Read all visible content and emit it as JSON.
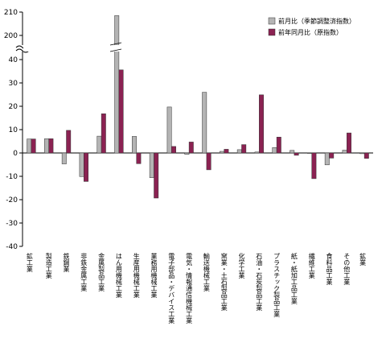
{
  "chart_data": {
    "type": "bar",
    "categories": [
      "鉱工業",
      "製造工業",
      "鉄鋼業",
      "非鉄金属工業",
      "金属製品工業",
      "はん用機械工業",
      "生産用機械工業",
      "業務用機械工業",
      "電子部品・デバイス工業",
      "電気・情報通信機械工業",
      "輸送機械工業",
      "窯業・土石製品工業",
      "化学工業",
      "石油・石炭製品工業",
      "プラスチック製品工業",
      "紙・紙加工品工業",
      "繊維工業",
      "食料品工業",
      "その他工業",
      "鉱業"
    ],
    "series": [
      {
        "name": "前月比（季節調整済指数）",
        "color": "#b4b4b4",
        "values": [
          6.0,
          6.1,
          -4.7,
          -10.1,
          7.2,
          208.5,
          7.1,
          -10.6,
          19.7,
          -0.6,
          26.0,
          0.7,
          1.4,
          0.4,
          2.3,
          1.1,
          -0.2,
          -5.1,
          1.2,
          -0.3
        ]
      },
      {
        "name": "前年同月比（原指数）",
        "color": "#8b2252",
        "values": [
          6.0,
          6.1,
          9.7,
          -12.2,
          16.8,
          35.6,
          -4.6,
          -19.3,
          2.8,
          4.7,
          -7.2,
          1.6,
          3.6,
          24.9,
          6.8,
          -1.0,
          -11.0,
          -2.2,
          8.6,
          -2.3
        ]
      }
    ],
    "yticks": [
      -40,
      -30,
      -20,
      -10,
      0,
      10,
      20,
      30,
      40,
      200,
      210
    ],
    "ylim": [
      -40,
      40
    ],
    "axis_break": {
      "lower_max": 40,
      "upper_min": 200,
      "upper_max": 210
    },
    "legend_position": "top-right",
    "grid": false
  }
}
